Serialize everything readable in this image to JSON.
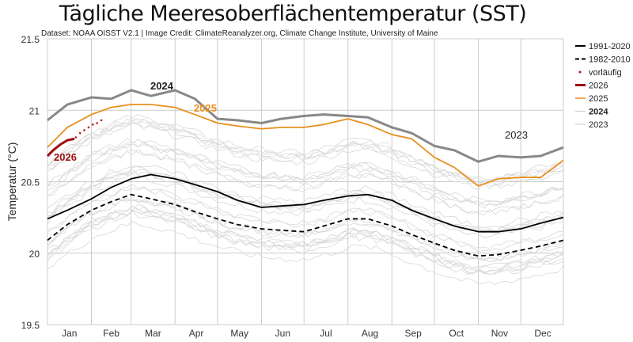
{
  "chart_data": {
    "type": "line",
    "title": "Tägliche Meeresoberflächentemperatur (SST)",
    "subtitle": "Dataset: NOAA OISST V2.1 | Image Credit: ClimateReanalyzer.org, Climate Change Institute, University of Maine",
    "ylabel": "Temperatur  (°C)",
    "ylim": [
      19.5,
      21.5
    ],
    "yticks": [
      "19.5",
      "20",
      "20.5",
      "21",
      "21.5"
    ],
    "months": [
      "Jan",
      "Feb",
      "Mar",
      "Apr",
      "May",
      "Jun",
      "Jul",
      "Aug",
      "Sep",
      "Oct",
      "Nov",
      "Dec"
    ],
    "grid": true,
    "legend_position": "right",
    "x_day_of_year": [
      1,
      15,
      32,
      46,
      60,
      74,
      91,
      105,
      121,
      135,
      152,
      166,
      182,
      196,
      213,
      227,
      244,
      258,
      274,
      288,
      305,
      319,
      335,
      349,
      365
    ],
    "series": [
      {
        "name": "1991-2020",
        "color": "#000000",
        "style": "solid",
        "values": [
          20.24,
          20.3,
          20.38,
          20.46,
          20.52,
          20.55,
          20.52,
          20.48,
          20.43,
          20.37,
          20.32,
          20.33,
          20.34,
          20.37,
          20.4,
          20.41,
          20.37,
          20.3,
          20.24,
          20.19,
          20.15,
          20.15,
          20.17,
          20.21,
          20.25
        ]
      },
      {
        "name": "1982-2010",
        "color": "#000000",
        "style": "dashed",
        "values": [
          20.09,
          20.2,
          20.3,
          20.36,
          20.41,
          20.38,
          20.34,
          20.29,
          20.24,
          20.2,
          20.17,
          20.16,
          20.15,
          20.19,
          20.24,
          20.24,
          20.19,
          20.13,
          20.07,
          20.02,
          19.98,
          19.99,
          20.02,
          20.05,
          20.09
        ]
      },
      {
        "name": "2024",
        "color": "#888888",
        "style": "thick",
        "label": "2024",
        "values": [
          20.93,
          21.04,
          21.09,
          21.08,
          21.14,
          21.1,
          21.14,
          21.08,
          20.94,
          20.93,
          20.91,
          20.94,
          20.96,
          20.97,
          20.96,
          20.95,
          20.88,
          20.84,
          20.75,
          20.72,
          20.64,
          20.68,
          20.67,
          20.68,
          20.74
        ]
      },
      {
        "name": "2025",
        "color": "#e8901e",
        "style": "solid",
        "label": "2025",
        "values": [
          20.74,
          20.88,
          20.97,
          21.02,
          21.04,
          21.04,
          21.02,
          20.97,
          20.91,
          20.89,
          20.87,
          20.88,
          20.88,
          20.9,
          20.94,
          20.9,
          20.83,
          20.8,
          20.67,
          20.6,
          20.47,
          20.52,
          20.53,
          20.53,
          20.65
        ]
      }
    ],
    "series_2026": {
      "name": "2026",
      "color": "#9b1010",
      "label": "2026",
      "x_day_of_year": [
        1,
        5,
        10,
        15,
        20
      ],
      "values": [
        20.68,
        20.72,
        20.76,
        20.79,
        20.8
      ]
    },
    "provisional": {
      "name": "vorläufig",
      "color": "#b01818",
      "x_day_of_year": [
        21,
        24,
        27,
        30,
        33,
        36,
        39
      ],
      "values": [
        20.81,
        20.84,
        20.86,
        20.88,
        20.9,
        20.91,
        20.93
      ]
    },
    "label_2023": "2023",
    "legend": [
      "1991-2020",
      "1982-2010",
      "vorläufig",
      "2026",
      "2025",
      "2024",
      "2023"
    ]
  }
}
